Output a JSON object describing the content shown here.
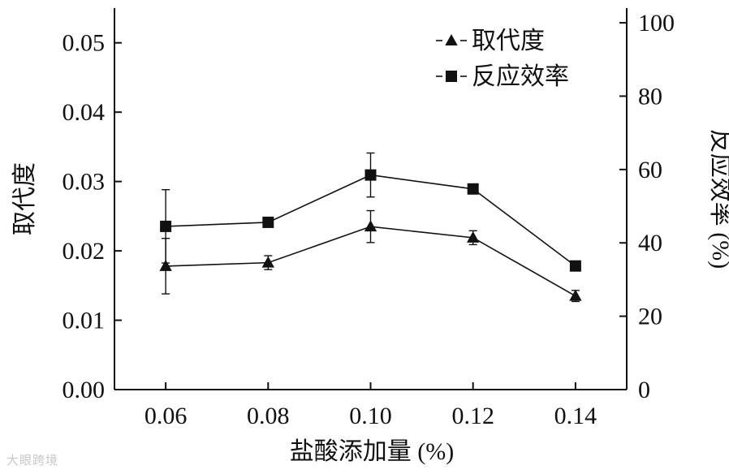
{
  "watermark": "大眼跨境",
  "chart_data": {
    "type": "line",
    "xlabel": "盐酸添加量 (%)",
    "ylabel": "取代度",
    "y2label": "反应效率 (%)",
    "x": [
      0.06,
      0.08,
      0.1,
      0.12,
      0.14
    ],
    "x_ticks": [
      "0.06",
      "0.08",
      "0.10",
      "0.12",
      "0.14"
    ],
    "xlim": [
      0.05,
      0.15
    ],
    "ylim": [
      0,
      0.055
    ],
    "y_ticks": [
      "0.00",
      "0.01",
      "0.02",
      "0.03",
      "0.04",
      "0.05"
    ],
    "y2lim": [
      0,
      104
    ],
    "y2_ticks": [
      "0",
      "20",
      "40",
      "60",
      "80",
      "100"
    ],
    "legend_position": "top-right",
    "grid": false,
    "series": [
      {
        "name": "取代度",
        "axis": "left",
        "marker": "triangle",
        "values": [
          0.0178,
          0.0183,
          0.0235,
          0.0219,
          0.0135
        ],
        "errors": [
          0.004,
          0.001,
          0.0023,
          0.001,
          0.0008
        ]
      },
      {
        "name": "反应效率",
        "axis": "right",
        "marker": "square",
        "values": [
          44.5,
          45.6,
          58.5,
          54.7,
          33.7
        ],
        "errors": [
          10.0,
          0.8,
          6.0,
          1.0,
          0.8
        ]
      }
    ]
  }
}
